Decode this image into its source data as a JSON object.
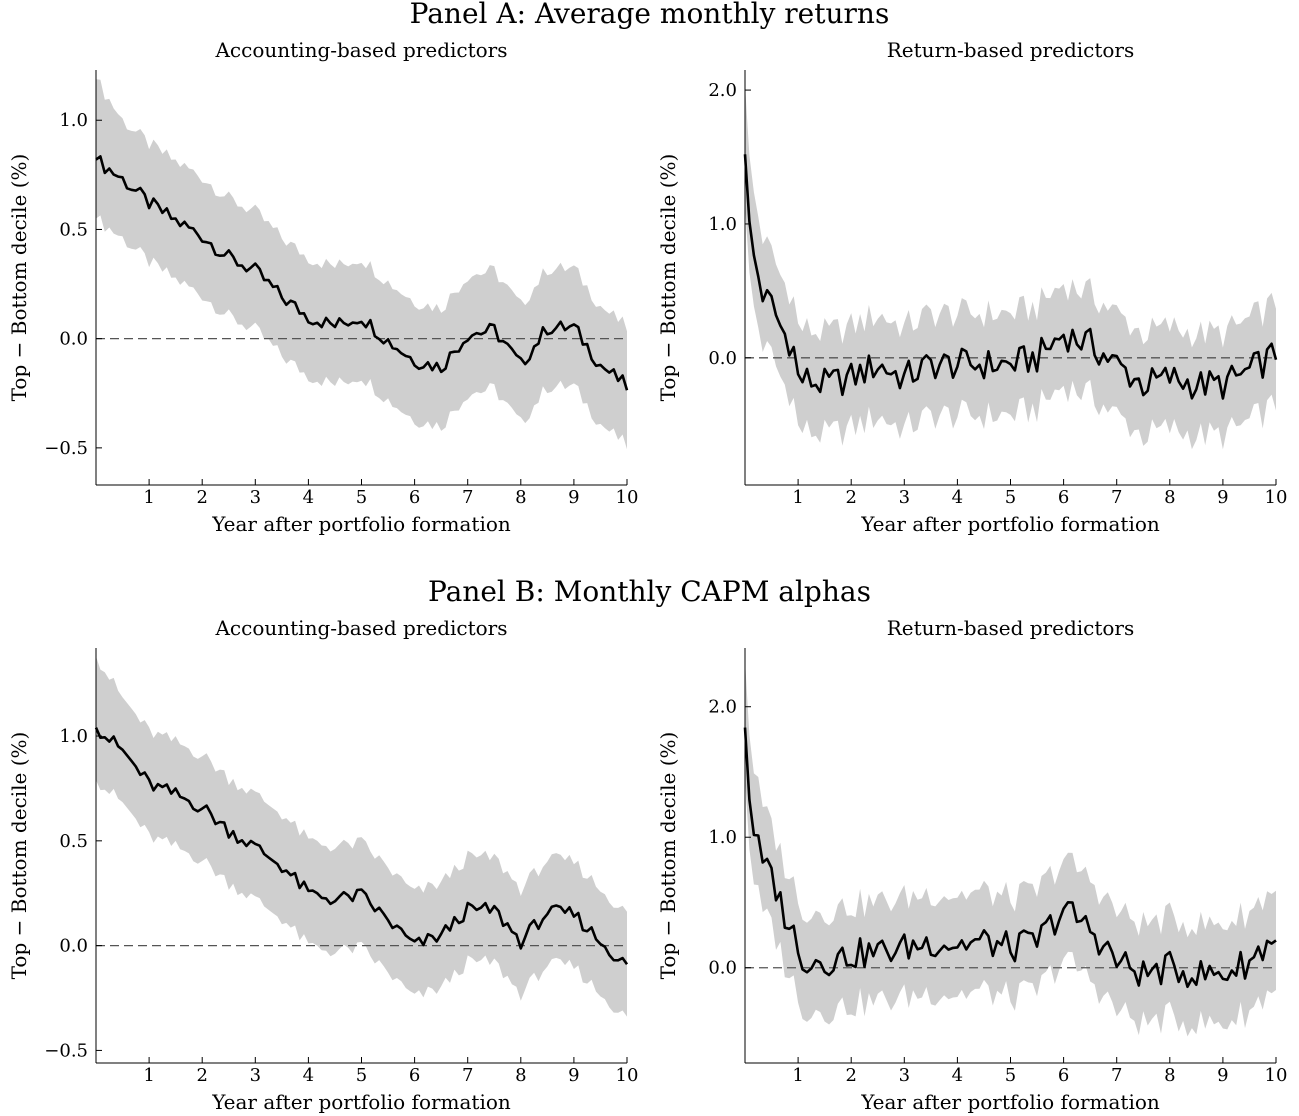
{
  "panels": [
    {
      "title": "Panel A: Average monthly returns"
    },
    {
      "title": "Panel B: Monthly CAPM alphas"
    }
  ],
  "chart_data": [
    {
      "type": "area",
      "panel": "Panel A: Average monthly returns",
      "title": "Accounting-based predictors",
      "xlabel": "Year after portfolio formation",
      "ylabel": "Top − Bottom decile (%)",
      "xlim": [
        0,
        10
      ],
      "ylim": [
        -0.67,
        1.23
      ],
      "xticks": [
        1,
        2,
        3,
        4,
        5,
        6,
        7,
        8,
        9,
        10
      ],
      "yticks": [
        -0.5,
        0.0,
        0.5,
        1.0
      ],
      "ytick_labels": [
        "−0.5",
        "0.0",
        "0.5",
        "1.0"
      ],
      "grid": false,
      "reference_line": 0.0,
      "band_halfwidth": 0.27,
      "x": [
        0.0,
        0.5,
        1.0,
        1.5,
        2.0,
        2.5,
        3.0,
        3.5,
        4.0,
        4.5,
        5.0,
        5.5,
        6.0,
        6.5,
        7.0,
        7.5,
        8.0,
        8.5,
        9.0,
        9.5,
        10.0
      ],
      "series": [
        {
          "values": [
            0.82,
            0.73,
            0.62,
            0.54,
            0.47,
            0.37,
            0.31,
            0.19,
            0.1,
            0.06,
            0.1,
            -0.01,
            -0.1,
            -0.13,
            0.02,
            0.04,
            -0.12,
            0.05,
            0.05,
            -0.12,
            -0.22
          ]
        }
      ]
    },
    {
      "type": "area",
      "panel": "Panel A: Average monthly returns",
      "title": "Return-based predictors",
      "xlabel": "Year after portfolio formation",
      "ylabel": "Top − Bottom decile (%)",
      "xlim": [
        0,
        10
      ],
      "ylim": [
        -0.95,
        2.15
      ],
      "xticks": [
        1,
        2,
        3,
        4,
        5,
        6,
        7,
        8,
        9,
        10
      ],
      "yticks": [
        0.0,
        1.0,
        2.0
      ],
      "ytick_labels": [
        "0.0",
        "1.0",
        "2.0"
      ],
      "grid": false,
      "reference_line": 0.0,
      "band_halfwidth": 0.38,
      "x": [
        0.0,
        0.1,
        0.2,
        0.35,
        0.5,
        0.7,
        0.9,
        1.0,
        1.5,
        2.0,
        2.5,
        3.0,
        3.5,
        4.0,
        4.5,
        5.0,
        5.5,
        6.0,
        6.5,
        7.0,
        7.5,
        8.0,
        8.5,
        9.0,
        9.5,
        10.0
      ],
      "series": [
        {
          "values": [
            1.52,
            0.85,
            0.7,
            0.45,
            0.4,
            0.2,
            0.1,
            -0.15,
            -0.2,
            -0.15,
            -0.05,
            -0.15,
            -0.05,
            -0.05,
            -0.05,
            -0.05,
            0.0,
            0.18,
            0.1,
            -0.05,
            -0.2,
            -0.15,
            -0.2,
            -0.2,
            -0.1,
            0.03
          ]
        }
      ]
    },
    {
      "type": "area",
      "panel": "Panel B: Monthly CAPM alphas",
      "title": "Accounting-based predictors",
      "xlabel": "Year after portfolio formation",
      "ylabel": "Top − Bottom decile (%)",
      "xlim": [
        0,
        10
      ],
      "ylim": [
        -0.56,
        1.42
      ],
      "xticks": [
        1,
        2,
        3,
        4,
        5,
        6,
        7,
        8,
        9,
        10
      ],
      "yticks": [
        -0.5,
        0.0,
        0.5,
        1.0
      ],
      "ytick_labels": [
        "−0.5",
        "0.0",
        "0.5",
        "1.0"
      ],
      "grid": false,
      "reference_line": 0.0,
      "band_halfwidth": 0.25,
      "x": [
        0.0,
        0.5,
        1.0,
        1.5,
        2.0,
        2.5,
        3.0,
        3.5,
        4.0,
        4.5,
        5.0,
        5.5,
        6.0,
        6.5,
        7.0,
        7.5,
        8.0,
        8.5,
        9.0,
        9.5,
        10.0
      ],
      "series": [
        {
          "values": [
            1.04,
            0.93,
            0.77,
            0.72,
            0.66,
            0.55,
            0.47,
            0.38,
            0.25,
            0.22,
            0.24,
            0.12,
            0.0,
            0.05,
            0.17,
            0.17,
            0.02,
            0.16,
            0.15,
            0.02,
            -0.1
          ]
        }
      ]
    },
    {
      "type": "area",
      "panel": "Panel B: Monthly CAPM alphas",
      "title": "Return-based predictors",
      "xlabel": "Year after portfolio formation",
      "ylabel": "Top − Bottom decile (%)",
      "xlim": [
        0,
        10
      ],
      "ylim": [
        -0.73,
        2.45
      ],
      "xticks": [
        1,
        2,
        3,
        4,
        5,
        6,
        7,
        8,
        9,
        10
      ],
      "yticks": [
        0.0,
        1.0,
        2.0
      ],
      "ytick_labels": [
        "0.0",
        "1.0",
        "2.0"
      ],
      "grid": false,
      "reference_line": 0.0,
      "band_halfwidth": 0.38,
      "x": [
        0.0,
        0.1,
        0.2,
        0.35,
        0.5,
        0.7,
        0.9,
        1.0,
        1.5,
        2.0,
        2.5,
        3.0,
        3.5,
        4.0,
        4.5,
        5.0,
        5.5,
        6.0,
        6.5,
        7.0,
        7.5,
        8.0,
        8.5,
        9.0,
        9.5,
        10.0
      ],
      "series": [
        {
          "values": [
            1.84,
            1.2,
            1.0,
            0.75,
            0.72,
            0.45,
            0.3,
            0.08,
            0.05,
            0.1,
            0.12,
            0.15,
            0.2,
            0.18,
            0.2,
            0.15,
            0.2,
            0.45,
            0.3,
            0.05,
            -0.05,
            0.0,
            -0.05,
            -0.05,
            0.05,
            0.25
          ]
        }
      ]
    }
  ]
}
